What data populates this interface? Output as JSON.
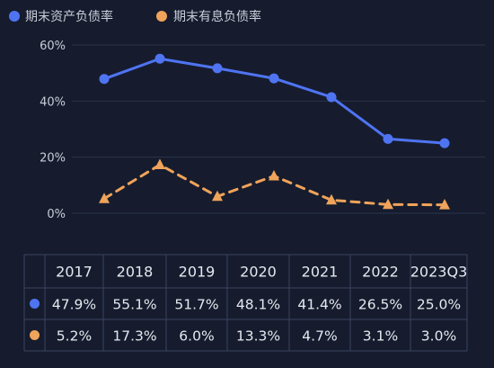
{
  "chart_data": {
    "type": "line",
    "categories": [
      "2017",
      "2018",
      "2019",
      "2020",
      "2021",
      "2022",
      "2023Q3"
    ],
    "series": [
      {
        "name": "期末资产负债率",
        "values": [
          47.9,
          55.1,
          51.7,
          48.1,
          41.4,
          26.5,
          25.0
        ],
        "color": "#4f74f2",
        "marker": "circle",
        "line_style": "solid"
      },
      {
        "name": "期末有息负债率",
        "values": [
          5.2,
          17.3,
          6.0,
          13.3,
          4.7,
          3.1,
          3.0
        ],
        "color": "#f0a35a",
        "marker": "triangle",
        "line_style": "dashed"
      }
    ],
    "yticks": [
      "0%",
      "20%",
      "40%",
      "60%"
    ],
    "ytick_values": [
      0,
      20,
      40,
      60
    ],
    "ylim": [
      0,
      60
    ],
    "grid": true,
    "legend_position": "top-left",
    "table": {
      "header": [
        "2017",
        "2018",
        "2019",
        "2020",
        "2021",
        "2022",
        "2023Q3"
      ],
      "rows": [
        [
          "47.9%",
          "55.1%",
          "51.7%",
          "48.1%",
          "41.4%",
          "26.5%",
          "25.0%"
        ],
        [
          "5.2%",
          "17.3%",
          "6.0%",
          "13.3%",
          "4.7%",
          "3.1%",
          "3.0%"
        ]
      ]
    }
  },
  "colors": {
    "background": "#161c2e",
    "grid": "#2b3349",
    "table_border": "#3a4360"
  }
}
